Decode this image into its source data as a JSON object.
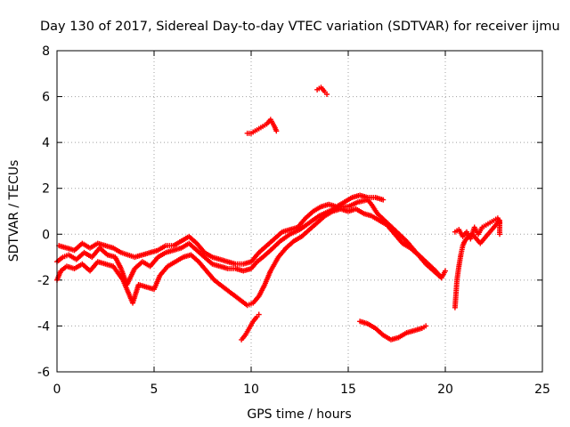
{
  "chart_data": {
    "type": "scatter",
    "title": "Day 130 of 2017, Sidereal Day-to-day VTEC variation (SDTVAR) for receiver ijmu",
    "xlabel": "GPS time / hours",
    "ylabel": "SDTVAR / TECUs",
    "xlim": [
      0,
      25
    ],
    "ylim": [
      -6,
      8
    ],
    "xticks": [
      0,
      5,
      10,
      15,
      20,
      25
    ],
    "xtick_labels": [
      "0",
      "5",
      "10",
      "15",
      "20",
      "25"
    ],
    "yticks": [
      -6,
      -4,
      -2,
      0,
      2,
      4,
      6,
      8
    ],
    "ytick_labels": [
      "-6",
      "-4",
      "-2",
      "0",
      "2",
      "4",
      "6",
      "8"
    ],
    "grid": true,
    "marker": "+",
    "color": "#ff0000",
    "series": [
      {
        "name": "main-trace-a",
        "points": [
          [
            0.0,
            -1.2
          ],
          [
            0.3,
            -1.0
          ],
          [
            0.6,
            -0.9
          ],
          [
            1.0,
            -1.1
          ],
          [
            1.4,
            -0.8
          ],
          [
            1.8,
            -1.0
          ],
          [
            2.2,
            -0.6
          ],
          [
            2.6,
            -0.9
          ],
          [
            3.0,
            -1.0
          ],
          [
            3.3,
            -1.5
          ],
          [
            3.6,
            -2.2
          ],
          [
            4.0,
            -1.5
          ],
          [
            4.4,
            -1.2
          ],
          [
            4.8,
            -1.4
          ],
          [
            5.2,
            -1.0
          ],
          [
            5.6,
            -0.8
          ],
          [
            6.0,
            -0.7
          ],
          [
            6.4,
            -0.6
          ],
          [
            6.8,
            -0.4
          ],
          [
            7.2,
            -0.7
          ],
          [
            7.6,
            -1.0
          ],
          [
            8.0,
            -1.3
          ],
          [
            8.4,
            -1.4
          ],
          [
            8.8,
            -1.5
          ],
          [
            9.2,
            -1.5
          ],
          [
            9.6,
            -1.6
          ],
          [
            10.0,
            -1.5
          ],
          [
            10.3,
            -1.2
          ],
          [
            10.6,
            -1.0
          ],
          [
            11.0,
            -0.7
          ],
          [
            11.5,
            -0.3
          ],
          [
            12.0,
            0.0
          ],
          [
            12.5,
            0.2
          ],
          [
            13.0,
            0.5
          ],
          [
            13.5,
            0.8
          ],
          [
            14.0,
            1.0
          ],
          [
            14.5,
            1.2
          ],
          [
            15.0,
            1.2
          ],
          [
            15.5,
            1.4
          ],
          [
            16.0,
            1.5
          ],
          [
            16.2,
            1.3
          ],
          [
            16.5,
            0.9
          ],
          [
            17.0,
            0.5
          ],
          [
            17.5,
            0.1
          ],
          [
            18.0,
            -0.3
          ],
          [
            18.5,
            -0.8
          ],
          [
            19.0,
            -1.2
          ],
          [
            19.5,
            -1.6
          ],
          [
            19.8,
            -1.9
          ]
        ]
      },
      {
        "name": "main-trace-b",
        "points": [
          [
            0.0,
            -2.0
          ],
          [
            0.2,
            -1.6
          ],
          [
            0.5,
            -1.4
          ],
          [
            0.9,
            -1.5
          ],
          [
            1.3,
            -1.3
          ],
          [
            1.7,
            -1.6
          ],
          [
            2.1,
            -1.2
          ],
          [
            2.5,
            -1.3
          ],
          [
            2.9,
            -1.4
          ],
          [
            3.4,
            -2.0
          ],
          [
            3.9,
            -3.0
          ],
          [
            4.2,
            -2.2
          ],
          [
            4.6,
            -2.3
          ],
          [
            5.0,
            -2.4
          ],
          [
            5.3,
            -1.8
          ],
          [
            5.7,
            -1.4
          ],
          [
            6.1,
            -1.2
          ],
          [
            6.5,
            -1.0
          ],
          [
            6.9,
            -0.9
          ],
          [
            7.3,
            -1.2
          ],
          [
            7.7,
            -1.6
          ],
          [
            8.1,
            -2.0
          ],
          [
            8.4,
            -2.2
          ],
          [
            9.8,
            -3.1
          ],
          [
            10.1,
            -3.0
          ],
          [
            10.4,
            -2.7
          ],
          [
            10.7,
            -2.2
          ],
          [
            11.0,
            -1.6
          ],
          [
            11.4,
            -1.0
          ],
          [
            11.8,
            -0.6
          ],
          [
            12.2,
            -0.3
          ],
          [
            12.6,
            -0.1
          ],
          [
            13.0,
            0.2
          ],
          [
            13.4,
            0.5
          ],
          [
            13.8,
            0.8
          ],
          [
            14.2,
            1.0
          ],
          [
            14.6,
            1.1
          ],
          [
            15.0,
            1.0
          ],
          [
            15.4,
            1.1
          ],
          [
            15.8,
            0.9
          ],
          [
            16.2,
            0.8
          ],
          [
            16.6,
            0.6
          ],
          [
            17.0,
            0.4
          ],
          [
            17.4,
            0.0
          ],
          [
            17.8,
            -0.4
          ],
          [
            18.2,
            -0.6
          ],
          [
            18.6,
            -0.9
          ],
          [
            19.0,
            -1.3
          ],
          [
            19.4,
            -1.6
          ],
          [
            19.8,
            -1.9
          ],
          [
            20.0,
            -1.6
          ]
        ]
      },
      {
        "name": "main-trace-c",
        "points": [
          [
            0.1,
            -0.5
          ],
          [
            0.5,
            -0.6
          ],
          [
            0.9,
            -0.7
          ],
          [
            1.3,
            -0.4
          ],
          [
            1.7,
            -0.6
          ],
          [
            2.1,
            -0.4
          ],
          [
            2.5,
            -0.5
          ],
          [
            2.9,
            -0.6
          ],
          [
            3.3,
            -0.8
          ],
          [
            4.0,
            -1.0
          ],
          [
            4.4,
            -0.9
          ],
          [
            4.8,
            -0.8
          ],
          [
            5.2,
            -0.7
          ],
          [
            5.6,
            -0.5
          ],
          [
            6.0,
            -0.5
          ],
          [
            6.4,
            -0.3
          ],
          [
            6.8,
            -0.1
          ],
          [
            7.2,
            -0.4
          ],
          [
            7.6,
            -0.8
          ],
          [
            8.0,
            -1.0
          ],
          [
            8.4,
            -1.1
          ],
          [
            8.8,
            -1.2
          ],
          [
            9.2,
            -1.3
          ],
          [
            9.6,
            -1.3
          ],
          [
            10.0,
            -1.2
          ],
          [
            10.4,
            -0.8
          ],
          [
            10.8,
            -0.5
          ],
          [
            11.2,
            -0.2
          ],
          [
            11.6,
            0.1
          ],
          [
            12.0,
            0.2
          ],
          [
            12.4,
            0.3
          ],
          [
            12.8,
            0.7
          ],
          [
            13.2,
            1.0
          ],
          [
            13.6,
            1.2
          ],
          [
            14.0,
            1.3
          ],
          [
            14.4,
            1.2
          ],
          [
            14.8,
            1.4
          ],
          [
            15.2,
            1.6
          ],
          [
            15.6,
            1.7
          ],
          [
            16.0,
            1.6
          ],
          [
            16.4,
            1.6
          ],
          [
            16.8,
            1.5
          ]
        ]
      },
      {
        "name": "lower-arc-9to10h",
        "points": [
          [
            9.5,
            -4.6
          ],
          [
            9.7,
            -4.4
          ],
          [
            9.9,
            -4.1
          ],
          [
            10.1,
            -3.8
          ],
          [
            10.3,
            -3.6
          ],
          [
            10.4,
            -3.5
          ]
        ]
      },
      {
        "name": "upper-segment-10to11h",
        "points": [
          [
            9.8,
            4.4
          ],
          [
            10.0,
            4.4
          ],
          [
            10.2,
            4.5
          ],
          [
            10.4,
            4.6
          ],
          [
            10.6,
            4.7
          ],
          [
            10.8,
            4.8
          ],
          [
            11.0,
            5.0
          ],
          [
            11.2,
            4.7
          ],
          [
            11.3,
            4.5
          ]
        ]
      },
      {
        "name": "upper-segment-13to14h",
        "points": [
          [
            13.4,
            6.3
          ],
          [
            13.6,
            6.4
          ],
          [
            13.8,
            6.2
          ],
          [
            13.9,
            6.1
          ]
        ]
      },
      {
        "name": "lower-segment-15to19h",
        "points": [
          [
            15.6,
            -3.8
          ],
          [
            16.0,
            -3.9
          ],
          [
            16.4,
            -4.1
          ],
          [
            16.8,
            -4.4
          ],
          [
            17.2,
            -4.6
          ],
          [
            17.6,
            -4.5
          ],
          [
            18.0,
            -4.3
          ],
          [
            18.4,
            -4.2
          ],
          [
            18.8,
            -4.1
          ],
          [
            19.0,
            -4.0
          ]
        ]
      },
      {
        "name": "late-segment-20to23h",
        "points": [
          [
            20.5,
            -3.2
          ],
          [
            20.55,
            -2.6
          ],
          [
            20.6,
            -2.0
          ],
          [
            20.7,
            -1.4
          ],
          [
            20.8,
            -0.9
          ],
          [
            20.9,
            -0.5
          ],
          [
            21.0,
            -0.3
          ],
          [
            21.2,
            -0.1
          ],
          [
            21.4,
            0.0
          ],
          [
            21.6,
            -0.2
          ],
          [
            21.8,
            -0.4
          ],
          [
            22.0,
            -0.2
          ],
          [
            22.2,
            0.0
          ],
          [
            22.4,
            0.2
          ],
          [
            22.6,
            0.4
          ],
          [
            22.8,
            0.6
          ],
          [
            22.8,
            0.0
          ]
        ]
      },
      {
        "name": "late-segment-20to23h-upper",
        "points": [
          [
            20.5,
            0.1
          ],
          [
            20.7,
            0.2
          ],
          [
            20.9,
            -0.1
          ],
          [
            21.1,
            0.1
          ],
          [
            21.3,
            -0.2
          ],
          [
            21.5,
            0.3
          ],
          [
            21.7,
            0.0
          ],
          [
            21.9,
            0.3
          ],
          [
            22.1,
            0.4
          ],
          [
            22.3,
            0.5
          ],
          [
            22.5,
            0.6
          ],
          [
            22.7,
            0.7
          ],
          [
            22.8,
            0.5
          ]
        ]
      }
    ]
  }
}
